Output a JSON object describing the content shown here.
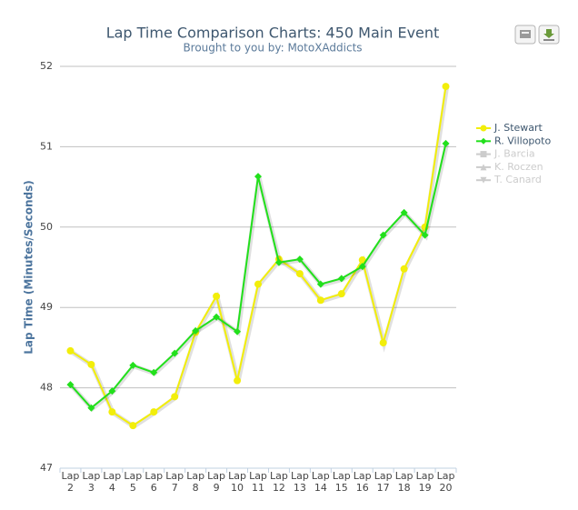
{
  "chart_data": {
    "type": "line",
    "title": "Lap Time Comparison Charts: 450 Main Event",
    "subtitle": "Brought to you by:  MotoXAddicts",
    "y_label": "Lap Time (Minutes/Seconds)",
    "categories": [
      "Lap 2",
      "Lap 3",
      "Lap 4",
      "Lap 5",
      "Lap 6",
      "Lap 7",
      "Lap 8",
      "Lap 9",
      "Lap 10",
      "Lap 11",
      "Lap 12",
      "Lap 13",
      "Lap 14",
      "Lap 15",
      "Lap 16",
      "Lap 17",
      "Lap 18",
      "Lap 19",
      "Lap 20"
    ],
    "series": [
      {
        "name": "J. Stewart",
        "color": "#f2ee0a",
        "marker": "circle",
        "values": [
          48.46,
          48.29,
          47.7,
          47.53,
          47.7,
          47.89,
          48.69,
          49.14,
          48.09,
          49.29,
          49.6,
          49.42,
          49.09,
          49.17,
          49.59,
          48.56,
          49.48,
          50.0,
          51.75
        ]
      },
      {
        "name": "R. Villopoto",
        "color": "#22e01c",
        "marker": "diamond",
        "values": [
          48.04,
          47.75,
          47.96,
          48.28,
          48.19,
          48.43,
          48.71,
          48.88,
          48.7,
          50.63,
          49.56,
          49.6,
          49.29,
          49.36,
          49.51,
          49.9,
          50.18,
          49.9,
          51.04
        ]
      },
      {
        "name": "J. Barcia",
        "color": "#cccccc",
        "marker": "square",
        "visible": false
      },
      {
        "name": "K. Roczen",
        "color": "#cccccc",
        "marker": "triangle",
        "visible": false
      },
      {
        "name": "T. Canard",
        "color": "#cccccc",
        "marker": "triangle-down",
        "visible": false
      }
    ],
    "ylim": [
      47,
      52
    ],
    "yticks": [
      47,
      48,
      49,
      50,
      51,
      52
    ],
    "grid": true,
    "legend": "right"
  }
}
